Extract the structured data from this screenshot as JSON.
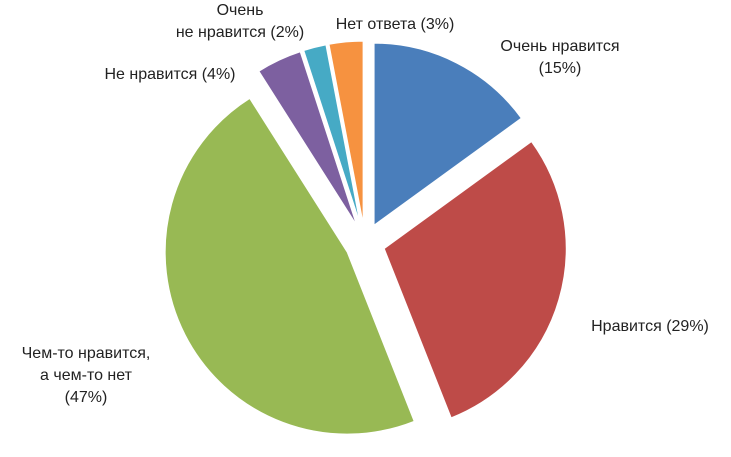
{
  "chart_data": {
    "type": "pie",
    "categories": [
      "Очень нравится",
      "Нравится",
      "Чем-то нравится,\nа чем-то нет",
      "Не нравится",
      "Очень\nне нравится",
      "Нет ответа"
    ],
    "values": [
      15,
      29,
      47,
      4,
      2,
      3
    ],
    "value_labels": [
      "(15%)",
      "(29%)",
      "(47%)",
      "(4%)",
      "(2%)",
      "(3%)"
    ],
    "colors": [
      "#4a7ebb",
      "#be4b48",
      "#98b954",
      "#7d60a0",
      "#46aac5",
      "#f69240"
    ]
  }
}
